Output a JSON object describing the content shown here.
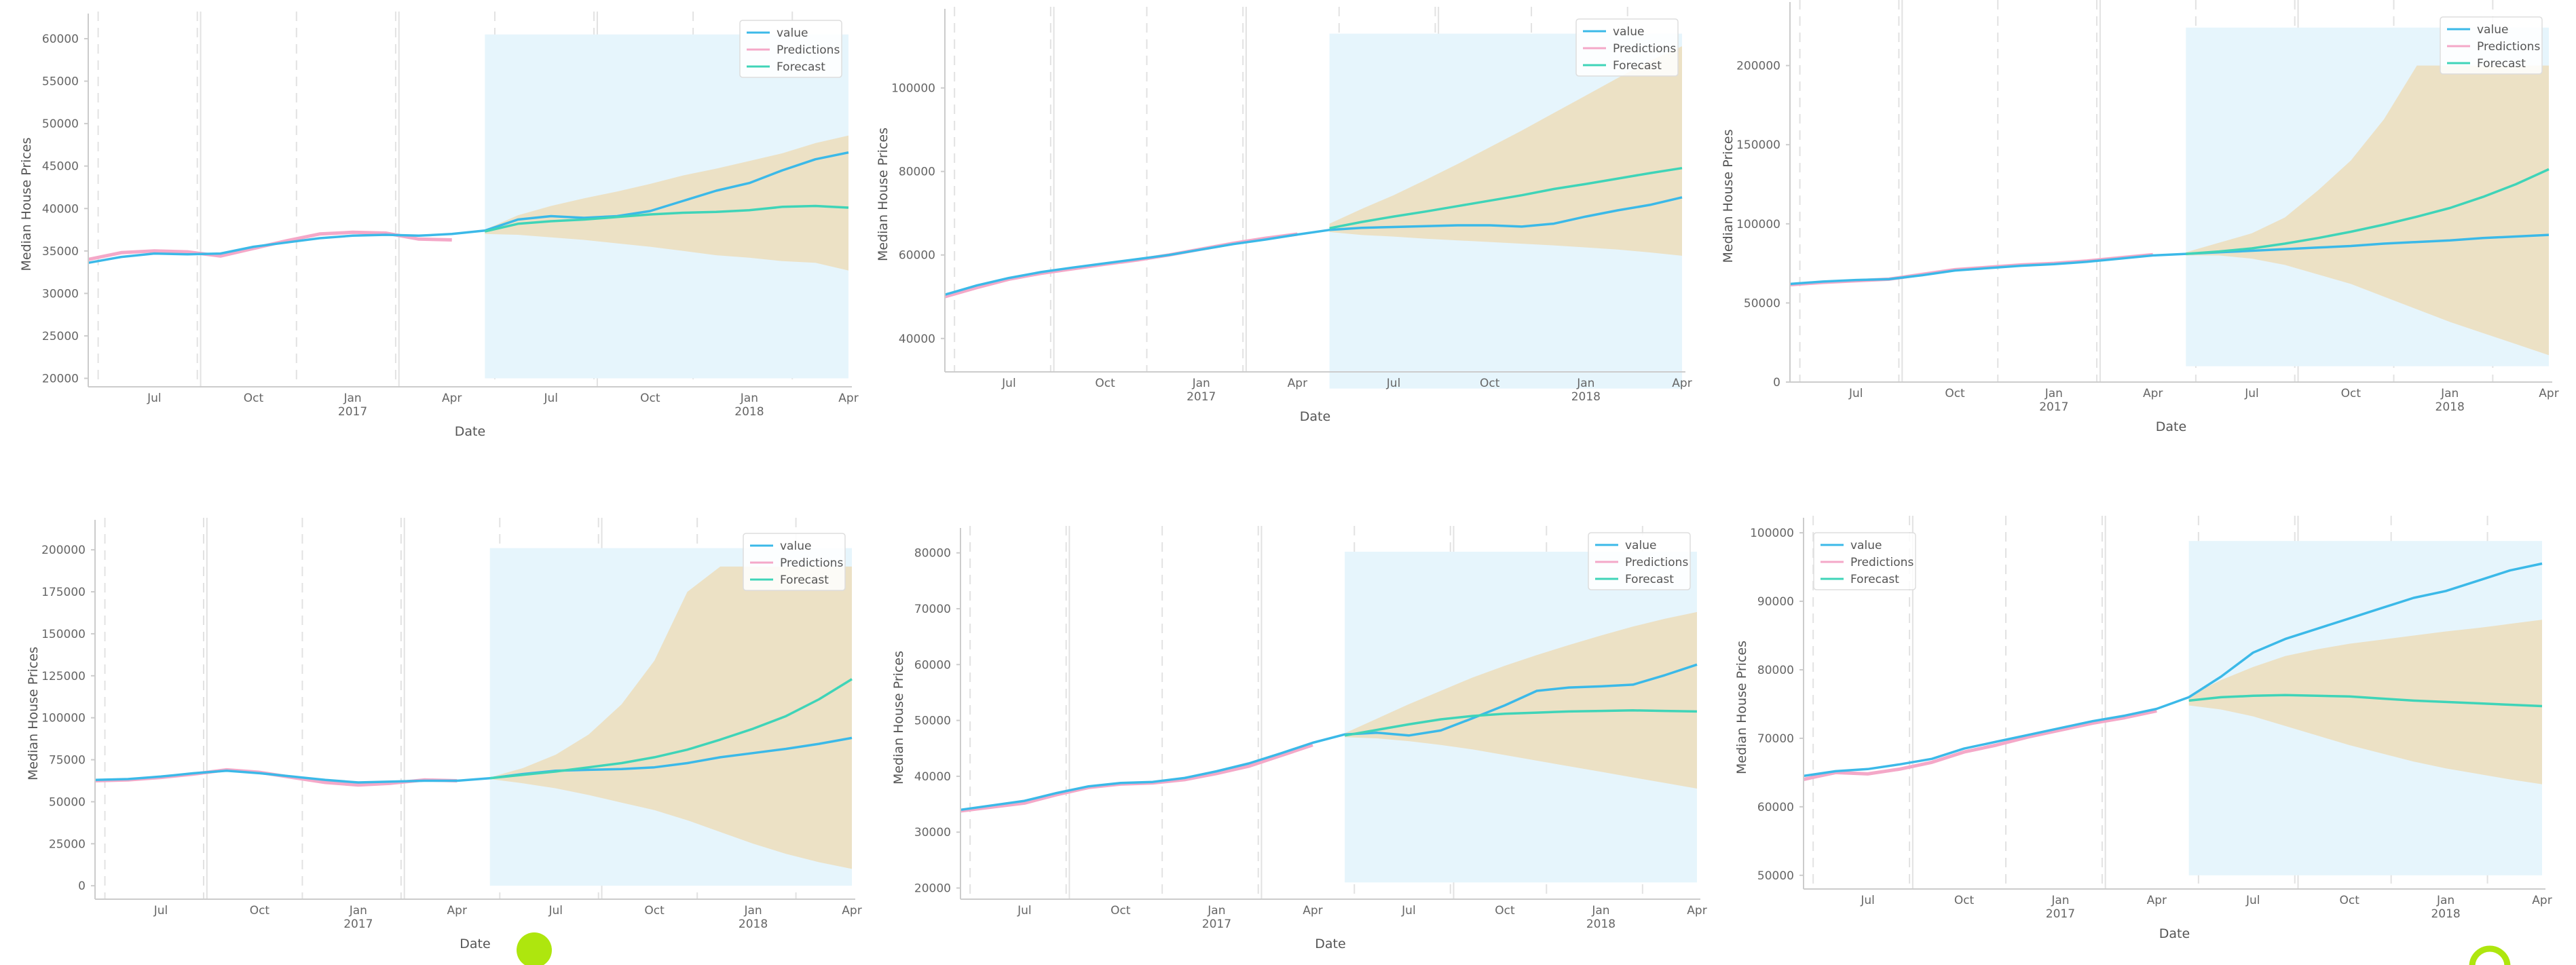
{
  "colors": {
    "value": "#3bb9e8",
    "predictions": "#f4a8c8",
    "forecast": "#3fd4b8",
    "band": "#ecdfc2",
    "shade": "#e6f5fc",
    "axis": "#cccccc",
    "vgrid": "#e2e2e2",
    "marker": "#aee60e"
  },
  "shared": {
    "xlabel": "Date",
    "ylabel": "Median House Prices",
    "xticks": [
      {
        "t": 2,
        "label": "Jul",
        "year": ""
      },
      {
        "t": 5,
        "label": "Oct",
        "year": ""
      },
      {
        "t": 8,
        "label": "Jan",
        "year": "2017"
      },
      {
        "t": 11,
        "label": "Apr",
        "year": ""
      },
      {
        "t": 14,
        "label": "Jul",
        "year": ""
      },
      {
        "t": 17,
        "label": "Oct",
        "year": ""
      },
      {
        "t": 20,
        "label": "Jan",
        "year": "2018"
      },
      {
        "t": 23,
        "label": "Apr",
        "year": ""
      }
    ],
    "legend": [
      "value",
      "Predictions",
      "Forecast"
    ]
  },
  "chart_data": [
    {
      "type": "line",
      "xlabel": "Date",
      "ylabel": "Median House Prices",
      "ylim": [
        19000,
        62000
      ],
      "yticks": [
        20000,
        25000,
        30000,
        35000,
        40000,
        45000,
        50000,
        55000,
        60000
      ],
      "legend_pos": "top-right",
      "series": [
        {
          "name": "value",
          "x": [
            0,
            1,
            2,
            3,
            4,
            5,
            6,
            7,
            8,
            9,
            10,
            11,
            12,
            13,
            14,
            15,
            16,
            17,
            18,
            19,
            20,
            21,
            22,
            23
          ],
          "values": [
            33600,
            34300,
            34700,
            34600,
            34700,
            35500,
            36000,
            36500,
            36800,
            36900,
            36800,
            37000,
            37400,
            38700,
            39100,
            38900,
            39100,
            39700,
            40900,
            42100,
            43000,
            44500,
            45800,
            46600
          ]
        },
        {
          "name": "Predictions",
          "x": [
            0,
            1,
            2,
            3,
            4,
            5,
            6,
            7,
            8,
            9,
            10,
            11
          ],
          "values": [
            34000,
            34800,
            35000,
            34900,
            34400,
            35300,
            36200,
            37000,
            37200,
            37100,
            36400,
            36300
          ]
        },
        {
          "name": "Forecast",
          "x": [
            12,
            13,
            14,
            15,
            16,
            17,
            18,
            19,
            20,
            21,
            22,
            23
          ],
          "values": [
            37300,
            38200,
            38500,
            38700,
            39000,
            39300,
            39500,
            39600,
            39800,
            40200,
            40300,
            40100
          ]
        }
      ],
      "band": {
        "x": [
          12,
          13,
          14,
          15,
          16,
          17,
          18,
          19,
          20,
          21,
          22,
          23
        ],
        "lower": [
          37000,
          36900,
          36600,
          36300,
          35900,
          35500,
          35000,
          34500,
          34200,
          33800,
          33600,
          32700
        ],
        "upper": [
          37500,
          39200,
          40300,
          41200,
          42000,
          42900,
          43900,
          44700,
          45600,
          46500,
          47700,
          48600
        ]
      },
      "shade": {
        "x0": 12,
        "x1": 23,
        "y0": 20000,
        "y1": 60500
      }
    },
    {
      "type": "line",
      "xlabel": "Date",
      "ylabel": "Median House Prices",
      "ylim": [
        32000,
        117000
      ],
      "yticks": [
        40000,
        60000,
        80000,
        100000
      ],
      "legend_pos": "top-right",
      "series": [
        {
          "name": "value",
          "x": [
            0,
            1,
            2,
            3,
            4,
            5,
            6,
            7,
            8,
            9,
            10,
            11,
            12,
            13,
            14,
            15,
            16,
            17,
            18,
            19,
            20,
            21,
            22,
            23
          ],
          "values": [
            50500,
            52700,
            54500,
            55900,
            57000,
            58000,
            59000,
            60000,
            61300,
            62600,
            63700,
            64900,
            66000,
            66500,
            66700,
            66900,
            67100,
            67100,
            66800,
            67500,
            69200,
            70700,
            72000,
            73800
          ]
        },
        {
          "name": "Predictions",
          "x": [
            0,
            1,
            2,
            3,
            4,
            5,
            6,
            7,
            8,
            9,
            10,
            11
          ],
          "values": [
            50000,
            52200,
            54200,
            55600,
            56700,
            57800,
            58800,
            60000,
            61400,
            62800,
            64000,
            65000
          ]
        },
        {
          "name": "Forecast",
          "x": [
            12,
            13,
            14,
            15,
            16,
            17,
            18,
            19,
            20,
            21,
            22,
            23
          ],
          "values": [
            66400,
            67900,
            69200,
            70400,
            71700,
            73000,
            74300,
            75800,
            77000,
            78300,
            79600,
            80800
          ]
        }
      ],
      "band": {
        "x": [
          12,
          13,
          14,
          15,
          16,
          17,
          18,
          19,
          20,
          21,
          22,
          23
        ],
        "lower": [
          65500,
          64800,
          64400,
          63900,
          63500,
          63100,
          62700,
          62300,
          61800,
          61300,
          60600,
          59800
        ],
        "upper": [
          67500,
          71000,
          74300,
          78000,
          81800,
          85800,
          89800,
          94000,
          98200,
          102400,
          106500,
          110000
        ]
      },
      "shade": {
        "x0": 12,
        "x1": 23,
        "y0": 28000,
        "y1": 113000
      }
    },
    {
      "type": "line",
      "xlabel": "Date",
      "ylabel": "Median House Prices",
      "ylim": [
        0,
        235000
      ],
      "yticks": [
        0,
        50000,
        100000,
        150000,
        200000
      ],
      "legend_pos": "top-right",
      "series": [
        {
          "name": "value",
          "x": [
            0,
            1,
            2,
            3,
            4,
            5,
            6,
            7,
            8,
            9,
            10,
            11,
            12,
            13,
            14,
            15,
            16,
            17,
            18,
            19,
            20,
            21,
            22,
            23
          ],
          "values": [
            62000,
            63500,
            64500,
            65000,
            67500,
            70500,
            72000,
            73500,
            74500,
            76000,
            78000,
            80000,
            81000,
            82000,
            83000,
            84000,
            85000,
            86000,
            87500,
            88500,
            89500,
            91000,
            92000,
            93000
          ]
        },
        {
          "name": "Predictions",
          "x": [
            0,
            1,
            2,
            3,
            4,
            5,
            6,
            7,
            8,
            9,
            10,
            11
          ],
          "values": [
            61500,
            63000,
            64000,
            65000,
            68000,
            71000,
            72500,
            74000,
            75000,
            76500,
            78500,
            80500
          ]
        },
        {
          "name": "Forecast",
          "x": [
            12,
            13,
            14,
            15,
            16,
            17,
            18,
            19,
            20,
            21,
            22,
            23
          ],
          "values": [
            81000,
            82500,
            84500,
            87500,
            91000,
            95000,
            99500,
            104500,
            110000,
            117000,
            125000,
            134500
          ]
        }
      ],
      "band": {
        "x": [
          12,
          13,
          14,
          15,
          16,
          17,
          18,
          19,
          20,
          21,
          22,
          23
        ],
        "lower": [
          80000,
          80000,
          78000,
          74000,
          68000,
          62000,
          54000,
          46000,
          38000,
          31000,
          24000,
          17000
        ],
        "upper": [
          82000,
          88000,
          94000,
          104000,
          121000,
          140000,
          166000,
          200000,
          200000,
          200000,
          200000,
          200000
        ]
      },
      "shade": {
        "x0": 12,
        "x1": 23,
        "y0": 10000,
        "y1": 224000
      }
    },
    {
      "type": "line",
      "xlabel": "Date",
      "ylabel": "Median House Prices",
      "ylim": [
        -8000,
        213000
      ],
      "yticks": [
        0,
        25000,
        50000,
        75000,
        100000,
        125000,
        150000,
        175000,
        200000
      ],
      "legend_pos": "top-right",
      "series": [
        {
          "name": "value",
          "x": [
            0,
            1,
            2,
            3,
            4,
            5,
            6,
            7,
            8,
            9,
            10,
            11,
            12,
            13,
            14,
            15,
            16,
            17,
            18,
            19,
            20,
            21,
            22,
            23
          ],
          "values": [
            63000,
            63500,
            65000,
            67000,
            68500,
            67000,
            65000,
            63000,
            61500,
            62000,
            62500,
            62500,
            64000,
            66500,
            68500,
            69000,
            69500,
            70500,
            73000,
            76500,
            79000,
            81500,
            84500,
            88000
          ]
        },
        {
          "name": "Predictions",
          "x": [
            0,
            1,
            2,
            3,
            4,
            5,
            6,
            7,
            8,
            9,
            10,
            11
          ],
          "values": [
            62500,
            63000,
            64500,
            66500,
            69000,
            67500,
            64500,
            61500,
            60000,
            61000,
            63000,
            62500
          ]
        },
        {
          "name": "Forecast",
          "x": [
            12,
            13,
            14,
            15,
            16,
            17,
            18,
            19,
            20,
            21,
            22,
            23
          ],
          "values": [
            64000,
            66000,
            68000,
            70500,
            73000,
            76500,
            81000,
            87000,
            93500,
            101000,
            111000,
            123000
          ]
        }
      ],
      "band": {
        "x": [
          12,
          13,
          14,
          15,
          16,
          17,
          18,
          19,
          20,
          21,
          22,
          23
        ],
        "lower": [
          63500,
          61000,
          58000,
          54000,
          49500,
          45000,
          39000,
          32000,
          25000,
          19000,
          14000,
          10000
        ],
        "upper": [
          64500,
          70000,
          78000,
          90000,
          108000,
          134000,
          175000,
          190000,
          190000,
          190000,
          190000,
          190000
        ]
      },
      "shade": {
        "x0": 12,
        "x1": 23,
        "y0": 0,
        "y1": 201000
      }
    },
    {
      "type": "line",
      "xlabel": "Date",
      "ylabel": "Median House Prices",
      "ylim": [
        18000,
        83000
      ],
      "yticks": [
        20000,
        30000,
        40000,
        50000,
        60000,
        70000,
        80000
      ],
      "legend_pos": "top-right",
      "series": [
        {
          "name": "value",
          "x": [
            0,
            1,
            2,
            3,
            4,
            5,
            6,
            7,
            8,
            9,
            10,
            11,
            12,
            13,
            14,
            15,
            16,
            17,
            18,
            19,
            20,
            21,
            22,
            23
          ],
          "values": [
            34000,
            34800,
            35600,
            37000,
            38200,
            38800,
            39000,
            39700,
            40900,
            42300,
            44100,
            46000,
            47500,
            47800,
            47300,
            48200,
            50400,
            52700,
            55300,
            55900,
            56100,
            56400,
            58100,
            60000
          ]
        },
        {
          "name": "Predictions",
          "x": [
            0,
            1,
            2,
            3,
            4,
            5,
            6,
            7,
            8,
            9,
            10,
            11
          ],
          "values": [
            33800,
            34500,
            35200,
            36700,
            38000,
            38600,
            38800,
            39400,
            40500,
            41800,
            43700,
            45600
          ]
        },
        {
          "name": "Forecast",
          "x": [
            12,
            13,
            14,
            15,
            16,
            17,
            18,
            19,
            20,
            21,
            22,
            23
          ],
          "values": [
            47300,
            48300,
            49300,
            50200,
            50800,
            51200,
            51400,
            51600,
            51700,
            51800,
            51700,
            51600
          ]
        }
      ],
      "band": {
        "x": [
          12,
          13,
          14,
          15,
          16,
          17,
          18,
          19,
          20,
          21,
          22,
          23
        ],
        "lower": [
          47000,
          46800,
          46300,
          45600,
          44800,
          43800,
          42800,
          41800,
          40800,
          39800,
          38800,
          37800
        ],
        "upper": [
          47700,
          50300,
          52900,
          55300,
          57700,
          59800,
          61700,
          63500,
          65200,
          66800,
          68200,
          69400
        ]
      },
      "shade": {
        "x0": 12,
        "x1": 23,
        "y0": 21000,
        "y1": 80200
      }
    },
    {
      "type": "line",
      "xlabel": "Date",
      "ylabel": "Median House Prices",
      "ylim": [
        48000,
        101000
      ],
      "yticks": [
        50000,
        60000,
        70000,
        80000,
        90000,
        100000
      ],
      "legend_pos": "top-left",
      "series": [
        {
          "name": "value",
          "x": [
            0,
            1,
            2,
            3,
            4,
            5,
            6,
            7,
            8,
            9,
            10,
            11,
            12,
            13,
            14,
            15,
            16,
            17,
            18,
            19,
            20,
            21,
            22,
            23
          ],
          "values": [
            64500,
            65200,
            65500,
            66200,
            67000,
            68500,
            69500,
            70500,
            71500,
            72500,
            73300,
            74300,
            76000,
            79000,
            82500,
            84500,
            86000,
            87500,
            89000,
            90500,
            91500,
            93000,
            94500,
            95500
          ]
        },
        {
          "name": "Predictions",
          "x": [
            0,
            1,
            2,
            3,
            4,
            5,
            6,
            7,
            8,
            9,
            10,
            11
          ],
          "values": [
            64000,
            65000,
            64800,
            65500,
            66500,
            68000,
            69000,
            70200,
            71200,
            72200,
            73000,
            74000
          ]
        },
        {
          "name": "Forecast",
          "x": [
            12,
            13,
            14,
            15,
            16,
            17,
            18,
            19,
            20,
            21,
            22,
            23
          ],
          "values": [
            75500,
            76000,
            76200,
            76300,
            76200,
            76100,
            75800,
            75500,
            75300,
            75100,
            74900,
            74700
          ]
        }
      ],
      "band": {
        "x": [
          12,
          13,
          14,
          15,
          16,
          17,
          18,
          19,
          20,
          21,
          22,
          23
        ],
        "lower": [
          74800,
          74200,
          73200,
          71800,
          70400,
          69000,
          67800,
          66600,
          65600,
          64800,
          64000,
          63300
        ],
        "upper": [
          76200,
          78500,
          80400,
          82000,
          83000,
          83800,
          84400,
          85000,
          85600,
          86100,
          86700,
          87300
        ]
      },
      "shade": {
        "x0": 12,
        "x1": 23,
        "y0": 50000,
        "y1": 98800
      }
    }
  ]
}
